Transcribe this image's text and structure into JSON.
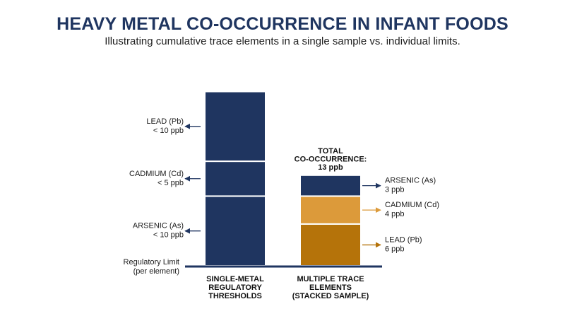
{
  "title": "HEAVY METAL CO-OCCURRENCE IN INFANT FOODS",
  "subtitle": "Illustrating cumulative trace elements in a single sample vs. individual limits.",
  "colors": {
    "navy": "#1f3560",
    "gold": "#dc9a3a",
    "bronze": "#b5730a",
    "text": "#1a1a1a"
  },
  "chart_data": {
    "type": "bar",
    "baseline_label": [
      "Regulatory Limit",
      "(per element)"
    ],
    "bars": [
      {
        "label": [
          "SINGLE-METAL",
          "REGULATORY",
          "THRESHOLDS"
        ],
        "segments": [
          {
            "name": "ARSENIC (As)",
            "value_label": "< 10 ppb",
            "value": 10,
            "color": "#1f3560"
          },
          {
            "name": "CADMIUM (Cd)",
            "value_label": "< 5 ppb",
            "value": 5,
            "color": "#1f3560"
          },
          {
            "name": "LEAD (Pb)",
            "value_label": "< 10 ppb",
            "value": 10,
            "color": "#1f3560"
          }
        ]
      },
      {
        "label": [
          "MULTIPLE TRACE",
          "ELEMENTS",
          "(STACKED SAMPLE)"
        ],
        "total_label": [
          "TOTAL",
          "CO-OCCURRENCE:",
          "13 ppb"
        ],
        "total": 13,
        "segments": [
          {
            "name": "LEAD (Pb)",
            "value_label": "6 ppb",
            "value": 6,
            "color": "#b5730a"
          },
          {
            "name": "CADMIUM (Cd)",
            "value_label": "4 ppb",
            "value": 4,
            "color": "#dc9a3a"
          },
          {
            "name": "ARSENIC (As)",
            "value_label": "3 ppb",
            "value": 3,
            "color": "#1f3560"
          }
        ]
      }
    ]
  }
}
